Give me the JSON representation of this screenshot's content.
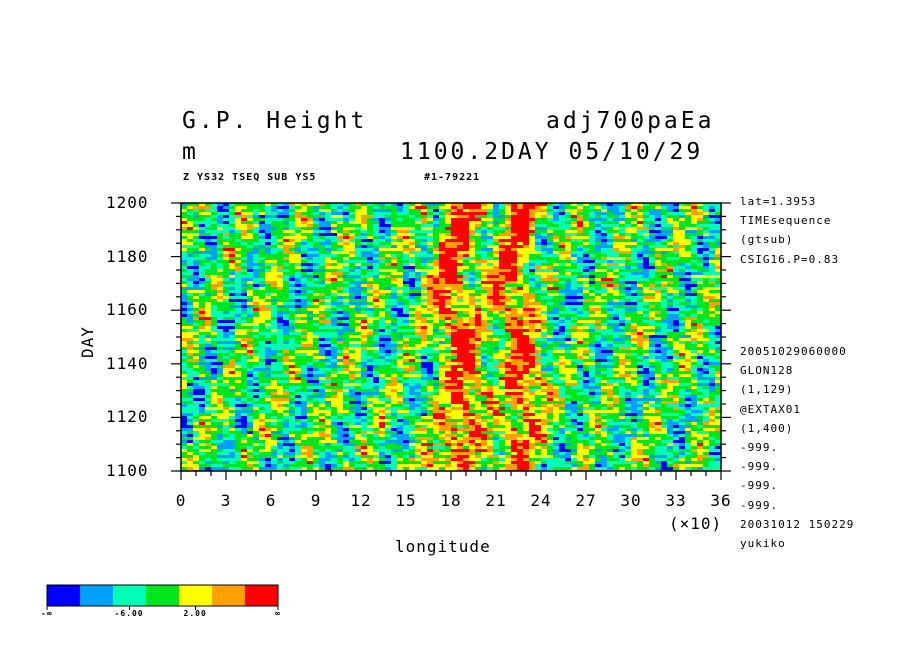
{
  "header": {
    "title_left": "G.P. Height",
    "title_right": "adj700paEa",
    "units": "m",
    "time_label": "1100.2DAY 05/10/29",
    "sub_left": "Z YS32 TSEQ SUB YS5",
    "sub_right": "#1-79221"
  },
  "side_info": {
    "top": [
      "lat=1.3953",
      "TIMEsequence",
      "(gtsub)",
      "CSIG16.P=0.83"
    ],
    "bottom": [
      "20051029060000",
      "GLON128",
      "(1,129)",
      "@EXTAX01",
      "(1,400)",
      "-999.",
      "-999.",
      "-999.",
      "-999.",
      "20031012 150229",
      "yukiko"
    ]
  },
  "chart_data": {
    "type": "heatmap",
    "xlabel": "longitude",
    "ylabel": "DAY",
    "x_multiplier_label": "(×10)",
    "xlim": [
      0,
      36
    ],
    "ylim": [
      1100,
      1200
    ],
    "x_ticks": [
      0,
      3,
      6,
      9,
      12,
      15,
      18,
      21,
      24,
      27,
      30,
      33,
      36
    ],
    "y_ticks": [
      1100,
      1120,
      1140,
      1160,
      1180,
      1200
    ],
    "x_tick_labels": [
      "0",
      "3",
      "6",
      "9",
      "12",
      "15",
      "18",
      "21",
      "24",
      "27",
      "30",
      "33",
      "36"
    ],
    "y_tick_labels": [
      "1100",
      "1120",
      "1140",
      "1160",
      "1180",
      "1200"
    ],
    "colorbar": {
      "colors": [
        "#0000ff",
        "#00a0ff",
        "#00ffb4",
        "#00e61e",
        "#ffff00",
        "#ffa000",
        "#ff0000"
      ],
      "labels": [
        "-∞",
        "-6.00",
        "2.00",
        "∞"
      ]
    },
    "features": [
      {
        "description": "positive anomaly band",
        "x_center": 18.5,
        "x_halfwidth": 1.5
      },
      {
        "description": "positive anomaly band",
        "x_center": 22.5,
        "x_halfwidth": 1.3
      }
    ]
  }
}
